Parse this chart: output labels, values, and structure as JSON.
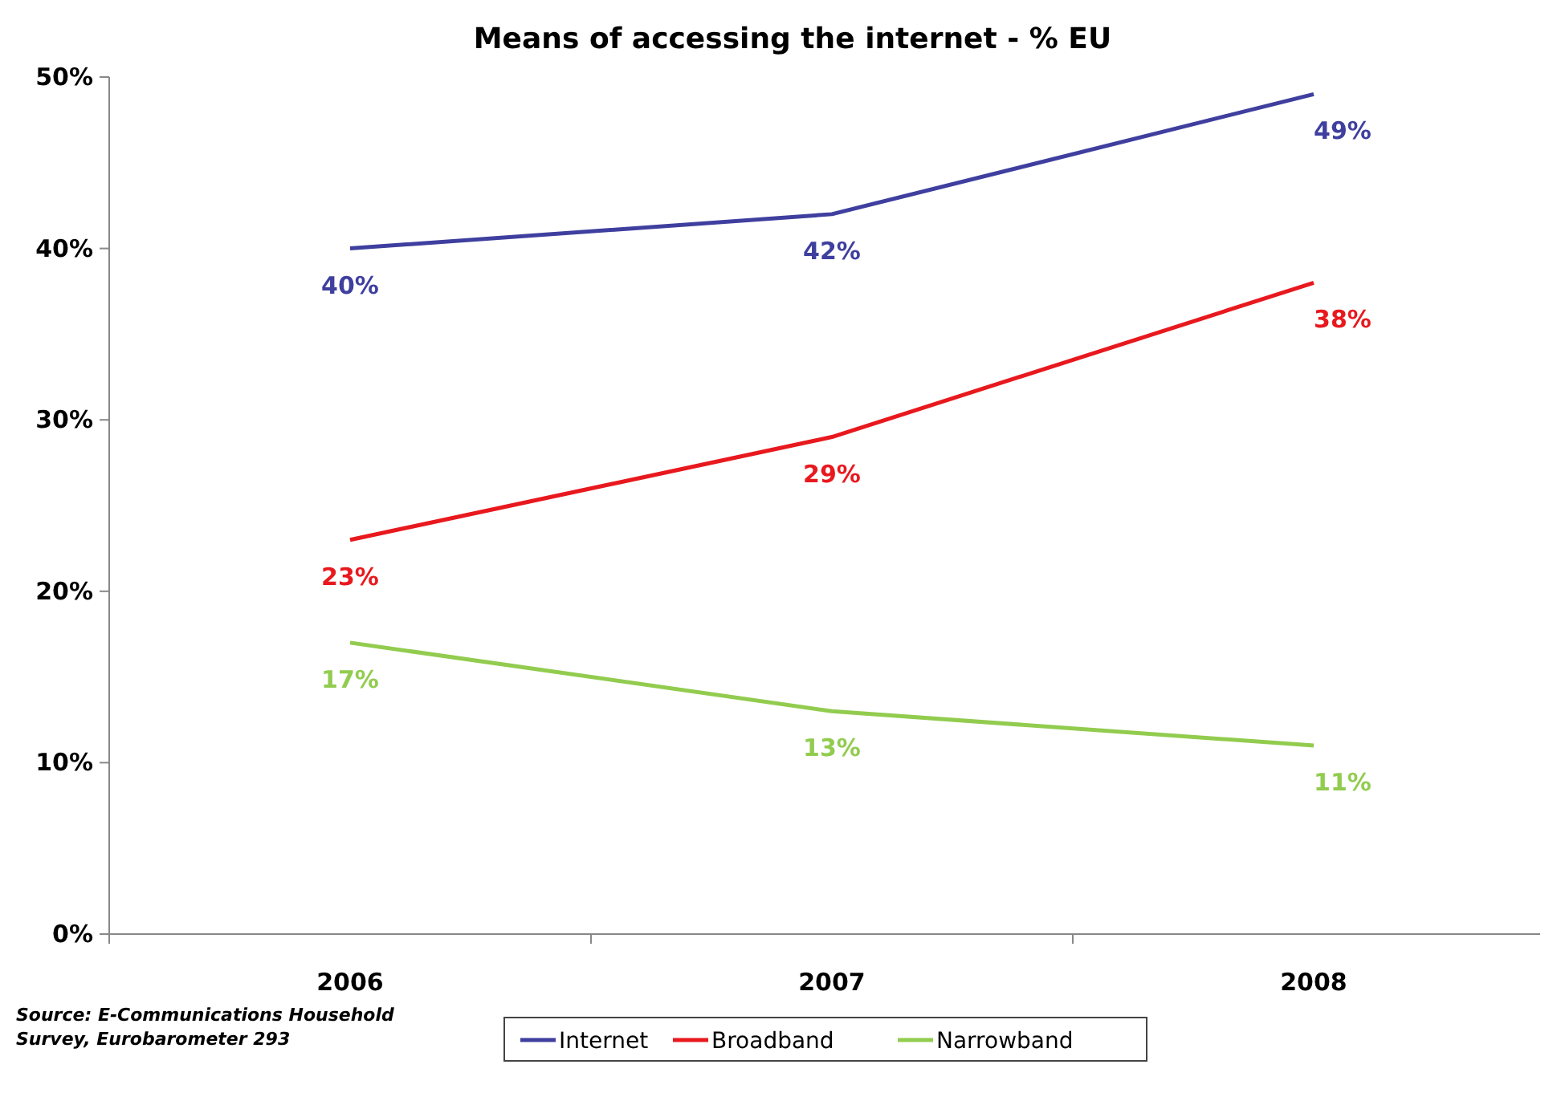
{
  "chart_data": {
    "type": "line",
    "title": "Means of accessing the internet - % EU",
    "categories": [
      "2006",
      "2007",
      "2008"
    ],
    "series": [
      {
        "name": "Internet",
        "color": "#3f3f9f",
        "values": [
          40,
          42,
          49
        ],
        "value_labels": [
          "40%",
          "42%",
          "49%"
        ]
      },
      {
        "name": "Broadband",
        "color": "#e8191e",
        "values": [
          23,
          29,
          38
        ],
        "value_labels": [
          "23%",
          "29%",
          "38%"
        ]
      },
      {
        "name": "Narrowband",
        "color": "#92cc4f",
        "values": [
          17,
          13,
          11
        ],
        "value_labels": [
          "17%",
          "13%",
          "11%"
        ]
      }
    ],
    "ylim": [
      0,
      50
    ],
    "yticks": [
      {
        "value": 0,
        "label": "0%"
      },
      {
        "value": 10,
        "label": "10%"
      },
      {
        "value": 20,
        "label": "20%"
      },
      {
        "value": 30,
        "label": "30%"
      },
      {
        "value": 40,
        "label": "40%"
      },
      {
        "value": 50,
        "label": "50%"
      }
    ],
    "grid": false,
    "legend": "bottom",
    "marker": "none",
    "line_style": "solid",
    "annotations": [
      "Source: E-Communications Household Survey, Eurobarometer 293"
    ]
  }
}
